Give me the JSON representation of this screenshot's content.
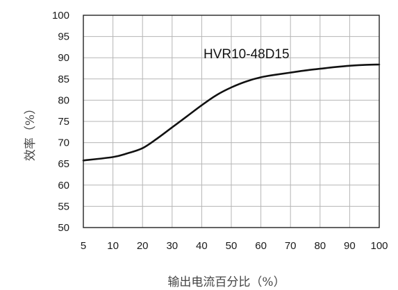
{
  "chart_data": {
    "type": "line",
    "title": "",
    "annotation": "HVR10-48D15",
    "xlabel": "输出电流百分比（%）",
    "ylabel": "效率（%）",
    "xlim": [
      5,
      100
    ],
    "ylim": [
      50,
      100
    ],
    "x_ticks": [
      5,
      10,
      20,
      30,
      40,
      50,
      60,
      70,
      80,
      90,
      100
    ],
    "y_ticks": [
      50,
      55,
      60,
      65,
      70,
      75,
      80,
      85,
      90,
      95,
      100
    ],
    "grid": true,
    "series": [
      {
        "x": [
          5,
          10,
          15,
          20,
          25,
          30,
          35,
          40,
          45,
          50,
          55,
          60,
          65,
          70,
          75,
          80,
          85,
          90,
          95,
          100
        ],
        "y": [
          65.8,
          66.6,
          67.5,
          68.7,
          71.0,
          73.6,
          76.2,
          78.8,
          81.2,
          83.0,
          84.4,
          85.4,
          86.0,
          86.5,
          87.0,
          87.4,
          87.8,
          88.1,
          88.3,
          88.4
        ]
      }
    ]
  }
}
